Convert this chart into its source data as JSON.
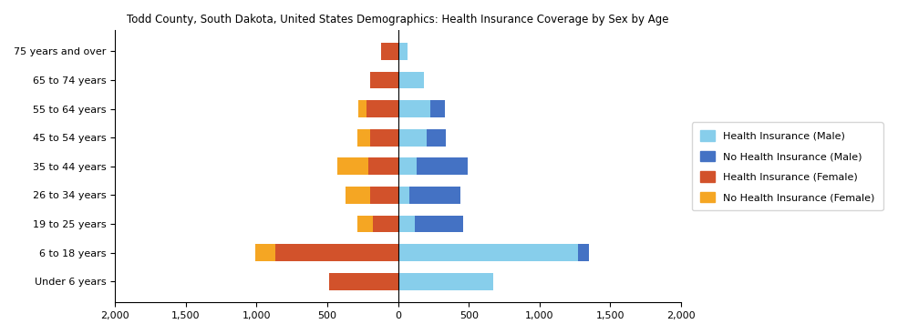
{
  "title": "Todd County, South Dakota, United States Demographics: Health Insurance Coverage by Sex by Age",
  "age_groups": [
    "Under 6 years",
    "6 to 18 years",
    "19 to 25 years",
    "26 to 34 years",
    "35 to 44 years",
    "45 to 54 years",
    "55 to 64 years",
    "65 to 74 years",
    "75 years and over"
  ],
  "male_health_ins": [
    670,
    1270,
    120,
    80,
    130,
    200,
    230,
    185,
    70
  ],
  "male_no_health_ins": [
    0,
    80,
    340,
    360,
    360,
    140,
    100,
    0,
    0
  ],
  "female_health_ins": [
    490,
    870,
    180,
    200,
    210,
    200,
    220,
    200,
    120
  ],
  "female_no_health_ins": [
    0,
    140,
    110,
    170,
    220,
    90,
    60,
    0,
    0
  ],
  "colors": {
    "health_ins_male": "#87CEEB",
    "no_health_ins_male": "#4472C4",
    "health_ins_female": "#D2522B",
    "no_health_ins_female": "#F5A623"
  },
  "xlim": [
    -2000,
    2000
  ],
  "xticks": [
    -2000,
    -1500,
    -1000,
    -500,
    0,
    500,
    1000,
    1500,
    2000
  ],
  "xticklabels": [
    "2,000",
    "1,500",
    "1,000",
    "500",
    "0",
    "500",
    "1,000",
    "1,500",
    "2,000"
  ],
  "legend_labels": [
    "Health Insurance (Male)",
    "No Health Insurance (Male)",
    "Health Insurance (Female)",
    "No Health Insurance (Female)"
  ],
  "legend_colors": [
    "#87CEEB",
    "#4472C4",
    "#D2522B",
    "#F5A623"
  ]
}
